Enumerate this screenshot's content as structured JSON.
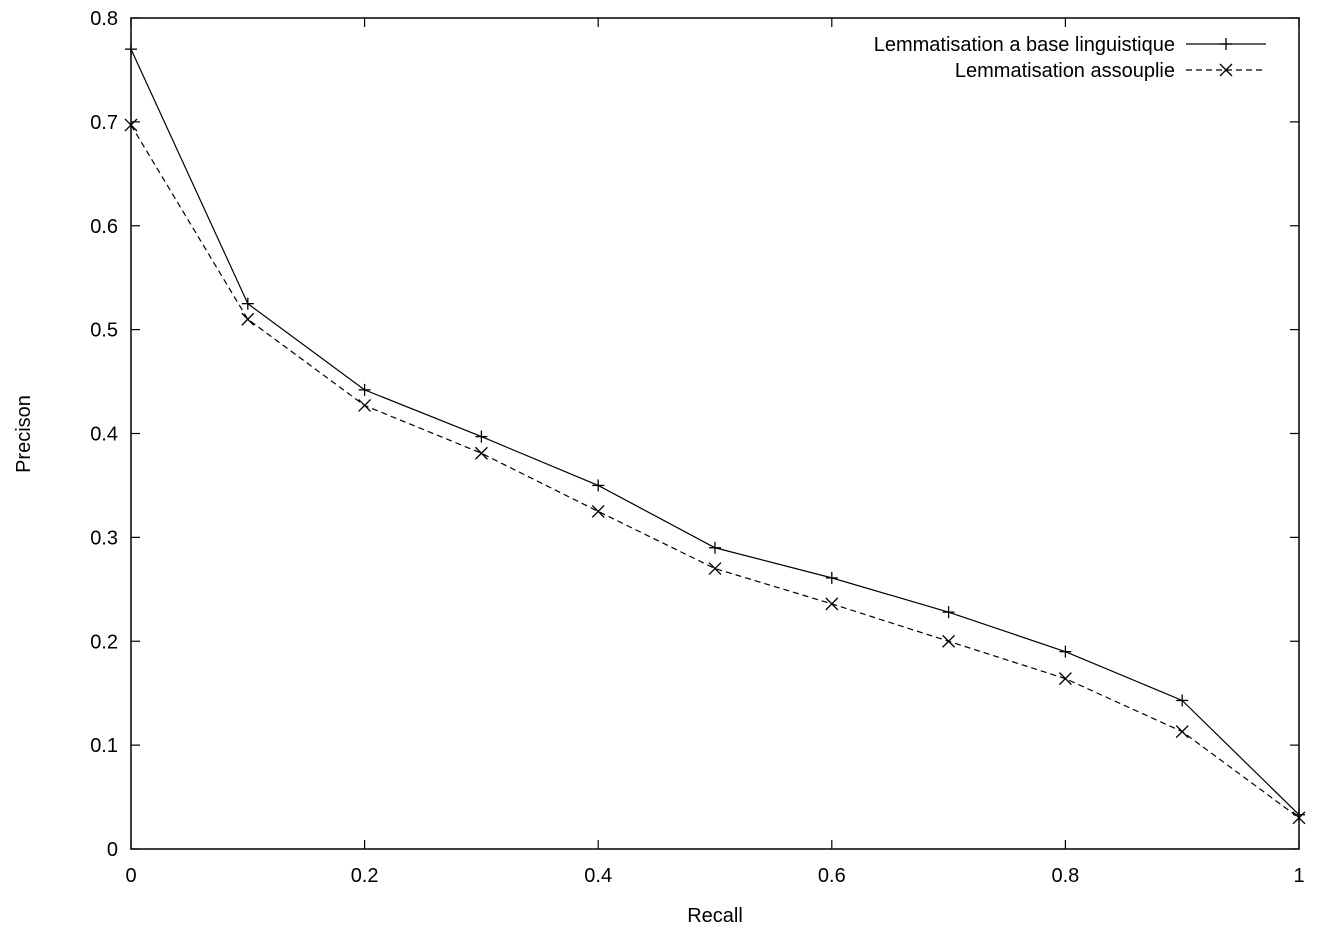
{
  "chart_data": {
    "type": "line",
    "title": "",
    "xlabel": "Recall",
    "ylabel": "Precison",
    "xlim": [
      0,
      1
    ],
    "ylim": [
      0,
      0.8
    ],
    "xticks": [
      "0",
      "0.2",
      "0.4",
      "0.6",
      "0.8",
      "1"
    ],
    "yticks": [
      "0",
      "0.1",
      "0.2",
      "0.3",
      "0.4",
      "0.5",
      "0.6",
      "0.7",
      "0.8"
    ],
    "grid": false,
    "legend_position": "top-right",
    "x": [
      0,
      0.1,
      0.2,
      0.3,
      0.4,
      0.5,
      0.6,
      0.7,
      0.8,
      0.9,
      1.0
    ],
    "series": [
      {
        "name": "Lemmatisation a base linguistique",
        "marker": "plus",
        "line": "solid",
        "color": "#000000",
        "values": [
          0.77,
          0.525,
          0.442,
          0.397,
          0.35,
          0.29,
          0.261,
          0.228,
          0.19,
          0.143,
          0.033
        ]
      },
      {
        "name": "Lemmatisation assouplie",
        "marker": "cross",
        "line": "dashed",
        "color": "#000000",
        "values": [
          0.697,
          0.51,
          0.427,
          0.381,
          0.325,
          0.27,
          0.236,
          0.2,
          0.164,
          0.113,
          0.03
        ]
      }
    ]
  }
}
